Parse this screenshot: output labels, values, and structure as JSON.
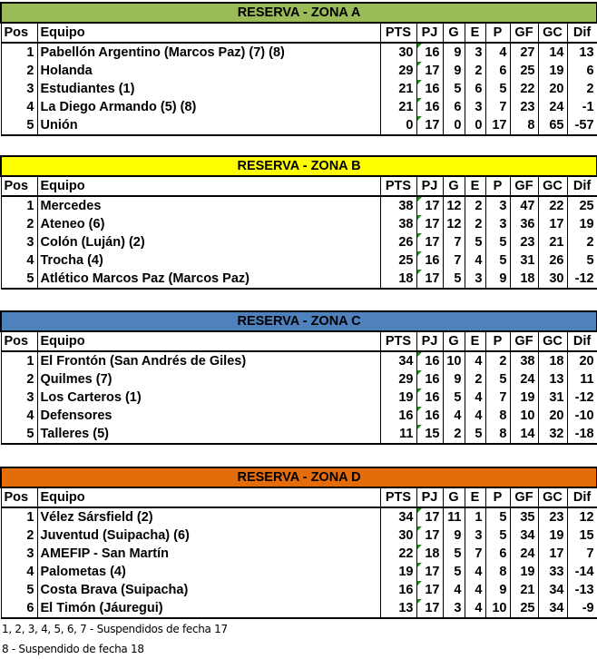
{
  "headers": [
    "Pos",
    "Equipo",
    "PTS",
    "PJ",
    "G",
    "E",
    "P",
    "GF",
    "GC",
    "Dif"
  ],
  "zones": [
    {
      "title": "RESERVA - ZONA A",
      "color": "#9bbb59",
      "rows": [
        [
          "1",
          "Pabellón Argentino (Marcos Paz) (7) (8)",
          "30",
          "16",
          "9",
          "3",
          "4",
          "27",
          "14",
          "13"
        ],
        [
          "2",
          "Holanda",
          "29",
          "17",
          "9",
          "2",
          "6",
          "25",
          "19",
          "6"
        ],
        [
          "3",
          "Estudiantes (1)",
          "21",
          "16",
          "5",
          "6",
          "5",
          "22",
          "20",
          "2"
        ],
        [
          "4",
          "La Diego Armando (5) (8)",
          "21",
          "16",
          "6",
          "3",
          "7",
          "23",
          "24",
          "-1"
        ],
        [
          "5",
          "Unión",
          "0",
          "17",
          "0",
          "0",
          "17",
          "8",
          "65",
          "-57"
        ]
      ]
    },
    {
      "title": "RESERVA - ZONA B",
      "color": "#ffff00",
      "rows": [
        [
          "1",
          "Mercedes",
          "38",
          "17",
          "12",
          "2",
          "3",
          "47",
          "22",
          "25"
        ],
        [
          "2",
          "Ateneo (6)",
          "38",
          "17",
          "12",
          "2",
          "3",
          "36",
          "17",
          "19"
        ],
        [
          "3",
          "Colón (Luján) (2)",
          "26",
          "17",
          "7",
          "5",
          "5",
          "23",
          "21",
          "2"
        ],
        [
          "4",
          "Trocha (4)",
          "25",
          "16",
          "7",
          "4",
          "5",
          "31",
          "26",
          "5"
        ],
        [
          "5",
          "Atlético Marcos Paz (Marcos Paz)",
          "18",
          "17",
          "5",
          "3",
          "9",
          "18",
          "30",
          "-12"
        ]
      ]
    },
    {
      "title": "RESERVA - ZONA C",
      "color": "#4f81bd",
      "rows": [
        [
          "1",
          "El Frontón (San Andrés de Giles)",
          "34",
          "16",
          "10",
          "4",
          "2",
          "38",
          "18",
          "20"
        ],
        [
          "2",
          "Quilmes (7)",
          "29",
          "16",
          "9",
          "2",
          "5",
          "24",
          "13",
          "11"
        ],
        [
          "3",
          "Los Carteros (1)",
          "19",
          "16",
          "5",
          "4",
          "7",
          "19",
          "31",
          "-12"
        ],
        [
          "4",
          "Defensores",
          "16",
          "16",
          "4",
          "4",
          "8",
          "10",
          "20",
          "-10"
        ],
        [
          "5",
          "Talleres (5)",
          "11",
          "15",
          "2",
          "5",
          "8",
          "14",
          "32",
          "-18"
        ]
      ]
    },
    {
      "title": "RESERVA - ZONA D",
      "color": "#e46c0a",
      "rows": [
        [
          "1",
          "Vélez Sársfield (2)",
          "34",
          "17",
          "11",
          "1",
          "5",
          "35",
          "23",
          "12"
        ],
        [
          "2",
          "Juventud (Suipacha) (6)",
          "30",
          "17",
          "9",
          "3",
          "5",
          "34",
          "19",
          "15"
        ],
        [
          "3",
          "AMEFIP - San Martín",
          "22",
          "18",
          "5",
          "7",
          "6",
          "24",
          "17",
          "7"
        ],
        [
          "4",
          "Palometas (4)",
          "19",
          "17",
          "5",
          "4",
          "8",
          "19",
          "33",
          "-14"
        ],
        [
          "5",
          "Costa Brava (Suipacha)",
          "16",
          "17",
          "4",
          "4",
          "9",
          "21",
          "34",
          "-13"
        ],
        [
          "6",
          "El Timón (Jáuregui)",
          "13",
          "17",
          "3",
          "4",
          "10",
          "25",
          "34",
          "-9"
        ]
      ]
    }
  ],
  "footnotes": [
    "1, 2, 3, 4, 5, 6, 7 - Suspendidos de fecha 17",
    "8 - Suspendido de fecha 18"
  ]
}
